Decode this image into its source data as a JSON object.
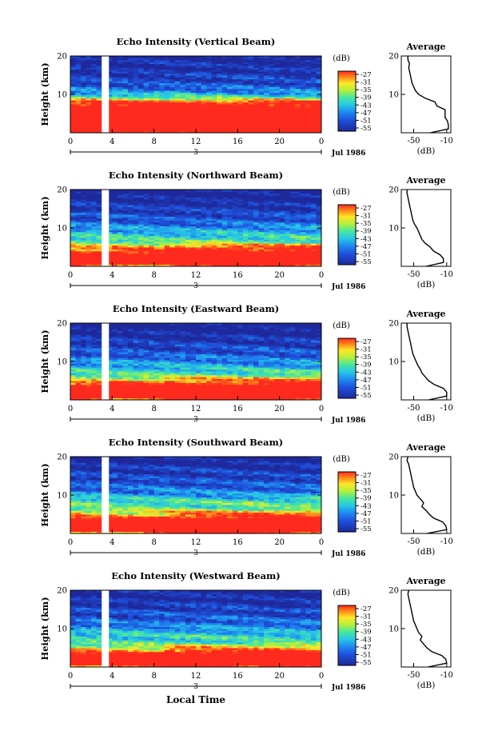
{
  "figure": {
    "x_axis_title": "Local Time"
  },
  "chart_data": [
    {
      "type": "heatmap",
      "title": "Echo Intensity (Vertical Beam)",
      "ylabel": "Height (km)",
      "ylim": [
        0,
        20
      ],
      "ytick_labels": [
        "10",
        "20"
      ],
      "xlim": [
        0,
        24
      ],
      "xtick_labels": [
        "0",
        "4",
        "8",
        "12",
        "16",
        "20",
        "0"
      ],
      "date_marker": "3",
      "date_label": "Jul 1986",
      "colorbar": {
        "unit": "(dB)",
        "tick_labels": [
          "-27",
          "-31",
          "-35",
          "-39",
          "-43",
          "-47",
          "-51",
          "-55"
        ]
      },
      "profile": {
        "title": "Average",
        "xlabel": "(dB)",
        "xtick_labels": [
          "-50",
          "-10"
        ],
        "ytick_labels": [
          "10",
          "20"
        ],
        "xlim": [
          -65,
          -5
        ],
        "heights": [
          0,
          1,
          2,
          3,
          4,
          5,
          6,
          7,
          8,
          9,
          10,
          11,
          12,
          13,
          14,
          15,
          16,
          17,
          18,
          19,
          20
        ],
        "values_db": [
          -30,
          -8,
          -8,
          -9,
          -12,
          -12,
          -12,
          -22,
          -24,
          -36,
          -44,
          -48,
          -50,
          -52,
          -53,
          -54,
          -55,
          -56,
          -55,
          -57,
          -57
        ]
      }
    },
    {
      "type": "heatmap",
      "title": "Echo Intensity (Northward Beam)",
      "ylabel": "Height (km)",
      "ylim": [
        0,
        20
      ],
      "ytick_labels": [
        "10",
        "20"
      ],
      "xlim": [
        0,
        24
      ],
      "xtick_labels": [
        "0",
        "4",
        "8",
        "12",
        "16",
        "20",
        "0"
      ],
      "date_marker": "3",
      "date_label": "Jul 1986",
      "colorbar": {
        "unit": "(dB)",
        "tick_labels": [
          "-27",
          "-31",
          "-35",
          "-39",
          "-43",
          "-47",
          "-51",
          "-55"
        ]
      },
      "profile": {
        "title": "Average",
        "xlabel": "(dB)",
        "xtick_labels": [
          "-50",
          "-10"
        ],
        "ytick_labels": [
          "10",
          "20"
        ],
        "xlim": [
          -65,
          -5
        ],
        "heights": [
          0,
          1,
          2,
          3,
          4,
          5,
          6,
          7,
          8,
          9,
          10,
          11,
          12,
          13,
          14,
          15,
          16,
          17,
          18,
          19,
          20
        ],
        "values_db": [
          -35,
          -14,
          -14,
          -18,
          -26,
          -30,
          -36,
          -40,
          -42,
          -44,
          -46,
          -49,
          -51,
          -52,
          -53,
          -54,
          -55,
          -56,
          -57,
          -58,
          -58
        ]
      }
    },
    {
      "type": "heatmap",
      "title": "Echo Intensity (Eastward Beam)",
      "ylabel": "Height (km)",
      "ylim": [
        0,
        20
      ],
      "ytick_labels": [
        "10",
        "20"
      ],
      "xlim": [
        0,
        24
      ],
      "xtick_labels": [
        "0",
        "4",
        "8",
        "12",
        "16",
        "20",
        "0"
      ],
      "date_marker": "3",
      "date_label": "Jul 1986",
      "colorbar": {
        "unit": "(dB)",
        "tick_labels": [
          "-27",
          "-31",
          "-35",
          "-39",
          "-43",
          "-47",
          "-51",
          "-55"
        ]
      },
      "profile": {
        "title": "Average",
        "xlabel": "(dB)",
        "xtick_labels": [
          "-50",
          "-10"
        ],
        "ytick_labels": [
          "10",
          "20"
        ],
        "xlim": [
          -65,
          -5
        ],
        "heights": [
          0,
          1,
          2,
          3,
          4,
          5,
          6,
          7,
          8,
          9,
          10,
          11,
          12,
          13,
          14,
          15,
          16,
          17,
          18,
          19,
          20
        ],
        "values_db": [
          -32,
          -10,
          -10,
          -14,
          -25,
          -32,
          -36,
          -40,
          -42,
          -45,
          -47,
          -49,
          -51,
          -52,
          -53,
          -54,
          -55,
          -56,
          -57,
          -58,
          -58
        ]
      }
    },
    {
      "type": "heatmap",
      "title": "Echo Intensity (Southward Beam)",
      "ylabel": "Height (km)",
      "ylim": [
        0,
        20
      ],
      "ytick_labels": [
        "10",
        "20"
      ],
      "xlim": [
        0,
        24
      ],
      "xtick_labels": [
        "0",
        "4",
        "8",
        "12",
        "16",
        "20",
        "0"
      ],
      "date_marker": "3",
      "date_label": "Jul 1986",
      "colorbar": {
        "unit": "(dB)",
        "tick_labels": [
          "-27",
          "-31",
          "-35",
          "-39",
          "-43",
          "-47",
          "-51",
          "-55"
        ]
      },
      "profile": {
        "title": "Average",
        "xlabel": "(dB)",
        "xtick_labels": [
          "-50",
          "-10"
        ],
        "ytick_labels": [
          "10",
          "20"
        ],
        "xlim": [
          -65,
          -5
        ],
        "heights": [
          0,
          1,
          2,
          3,
          4,
          5,
          6,
          7,
          8,
          9,
          10,
          11,
          12,
          13,
          14,
          15,
          16,
          17,
          18,
          19,
          20
        ],
        "values_db": [
          -34,
          -10,
          -11,
          -15,
          -26,
          -31,
          -35,
          -40,
          -38,
          -42,
          -46,
          -48,
          -50,
          -51,
          -52,
          -53,
          -54,
          -55,
          -56,
          -58,
          -57
        ]
      }
    },
    {
      "type": "heatmap",
      "title": "Echo Intensity (Westward Beam)",
      "ylabel": "Height (km)",
      "ylim": [
        0,
        20
      ],
      "ytick_labels": [
        "10",
        "20"
      ],
      "xlim": [
        0,
        24
      ],
      "xtick_labels": [
        "0",
        "4",
        "8",
        "12",
        "16",
        "20",
        "0"
      ],
      "date_marker": "3",
      "date_label": "Jul 1986",
      "colorbar": {
        "unit": "(dB)",
        "tick_labels": [
          "-27",
          "-31",
          "-35",
          "-39",
          "-43",
          "-47",
          "-51",
          "-55"
        ]
      },
      "profile": {
        "title": "Average",
        "xlabel": "(dB)",
        "xtick_labels": [
          "-50",
          "-10"
        ],
        "ytick_labels": [
          "10",
          "20"
        ],
        "xlim": [
          -65,
          -5
        ],
        "heights": [
          0,
          1,
          2,
          3,
          4,
          5,
          6,
          7,
          8,
          9,
          10,
          11,
          12,
          13,
          14,
          15,
          16,
          17,
          18,
          19,
          20
        ],
        "values_db": [
          -33,
          -10,
          -11,
          -16,
          -28,
          -34,
          -38,
          -42,
          -40,
          -44,
          -46,
          -48,
          -50,
          -51,
          -52,
          -53,
          -54,
          -55,
          -56,
          -57,
          -56
        ]
      }
    }
  ]
}
